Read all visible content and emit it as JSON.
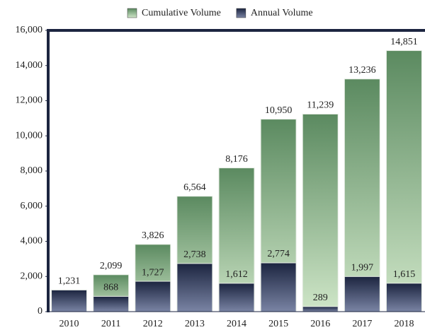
{
  "chart_data": {
    "type": "bar",
    "categories": [
      "2010",
      "2011",
      "2012",
      "2013",
      "2014",
      "2015",
      "2016",
      "2017",
      "2018"
    ],
    "series": [
      {
        "name": "Cumulative Volume",
        "color": "#5b8a60",
        "values": [
          null,
          2099,
          3826,
          6564,
          8176,
          10950,
          11239,
          13236,
          14851
        ],
        "value_labels": [
          null,
          "2,099",
          "3,826",
          "6,564",
          "8,176",
          "10,950",
          "11,239",
          "13,236",
          "14,851"
        ]
      },
      {
        "name": "Annual Volume",
        "color": "#1c2540",
        "values": [
          1231,
          868,
          1727,
          2738,
          1612,
          2774,
          289,
          1997,
          1615
        ],
        "value_labels": [
          "1,231",
          "868",
          "1,727",
          "2,738",
          "1,612",
          "2,774",
          "289",
          "1,997",
          "1,615"
        ]
      }
    ],
    "ylim": [
      0,
      16000
    ],
    "yticks": [
      0,
      {
        "value": 2000,
        "label": "2,000"
      },
      {
        "value": 4000,
        "label": "4,000"
      },
      {
        "value": 6000,
        "label": "6,000"
      },
      {
        "value": 8000,
        "label": "8,000"
      },
      {
        "value": 10000,
        "label": "10,000"
      },
      {
        "value": 12000,
        "label": "12,000"
      },
      {
        "value": 14000,
        "label": "14,000"
      },
      {
        "value": 16000,
        "label": "16,000"
      }
    ],
    "legend": "top"
  }
}
